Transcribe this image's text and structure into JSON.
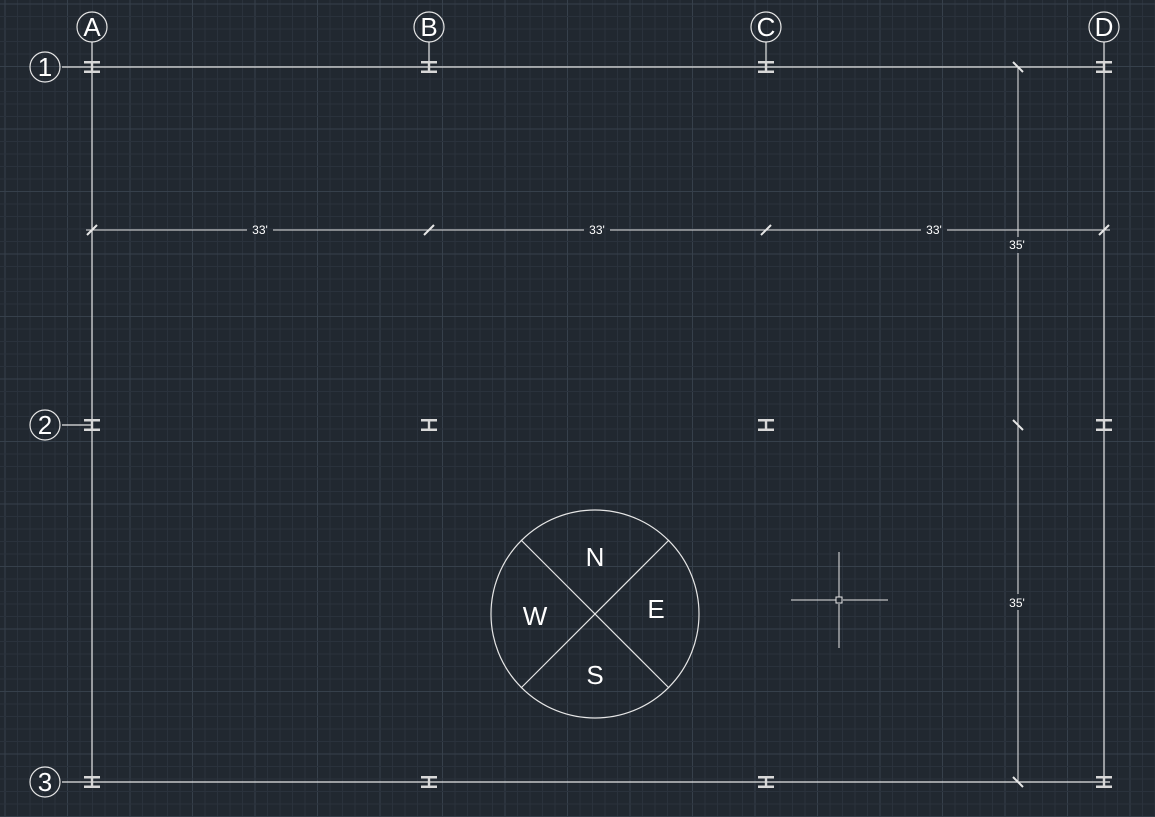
{
  "grid_columns": [
    "A",
    "B",
    "C",
    "D"
  ],
  "grid_rows": [
    "1",
    "2",
    "3"
  ],
  "dimensions": {
    "horizontal": [
      "33'",
      "33'",
      "33'"
    ],
    "vertical": [
      "35'",
      "35'"
    ]
  },
  "compass": {
    "north": "N",
    "east": "E",
    "south": "S",
    "west": "W"
  },
  "colors": {
    "background": "#212830",
    "grid_minor": "#2a323c",
    "grid_major": "#36404b",
    "linework": "#e6e6e6",
    "text": "#ffffff"
  }
}
